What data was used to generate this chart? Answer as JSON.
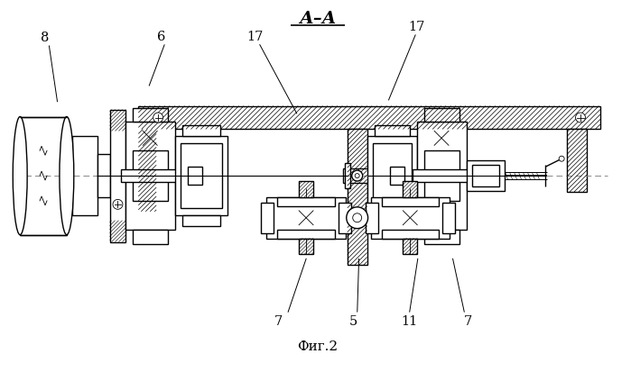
{
  "title": "А–А",
  "caption": "Фиг.2",
  "bg_color": "#ffffff",
  "line_color": "#000000"
}
